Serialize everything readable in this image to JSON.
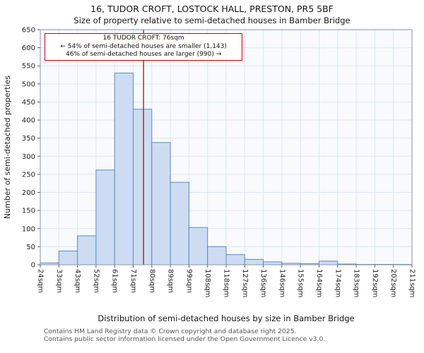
{
  "annotation": {
    "line1": "16 TUDOR CROFT: 76sqm",
    "line2": "← 54% of semi-detached houses are smaller (1,143)",
    "line3": "46% of semi-detached houses are larger (990) →"
  },
  "footer": {
    "line1": "Contains HM Land Registry data © Crown copyright and database right 2025.",
    "line2": "Contains public sector information licensed under the Open Government Licence v3.0."
  },
  "chart_data": {
    "type": "bar",
    "title": "16, TUDOR CROFT, LOSTOCK HALL, PRESTON, PR5 5BF",
    "subtitle": "Size of property relative to semi-detached houses in Bamber Bridge",
    "xlabel": "Distribution of semi-detached houses by size in Bamber Bridge",
    "ylabel": "Number of semi-detached properties",
    "bin_edges_sqm": [
      24,
      33,
      43,
      52,
      61,
      71,
      80,
      89,
      99,
      108,
      118,
      127,
      136,
      146,
      155,
      164,
      174,
      183,
      192,
      202,
      211
    ],
    "tick_labels": [
      "24sqm",
      "33sqm",
      "43sqm",
      "52sqm",
      "61sqm",
      "71sqm",
      "80sqm",
      "89sqm",
      "99sqm",
      "108sqm",
      "118sqm",
      "127sqm",
      "136sqm",
      "146sqm",
      "155sqm",
      "164sqm",
      "174sqm",
      "183sqm",
      "192sqm",
      "202sqm",
      "211sqm"
    ],
    "values": [
      5,
      38,
      80,
      262,
      530,
      430,
      338,
      228,
      103,
      50,
      28,
      15,
      8,
      4,
      3,
      10,
      2,
      1,
      1,
      1
    ],
    "ylim": [
      0,
      650
    ],
    "ytick_step": 50,
    "marker_value_sqm": 76,
    "smaller_pct": 54,
    "smaller_count": 1143,
    "larger_pct": 46,
    "larger_count": 990,
    "grid": true,
    "colors": {
      "bar_fill": "#cddcf2",
      "bar_stroke": "#5b8ac5",
      "marker_line": "#a01010",
      "grid": "#dde5f3",
      "plot_bg": "#f8fafd",
      "annotation_border": "#cc0000"
    }
  }
}
